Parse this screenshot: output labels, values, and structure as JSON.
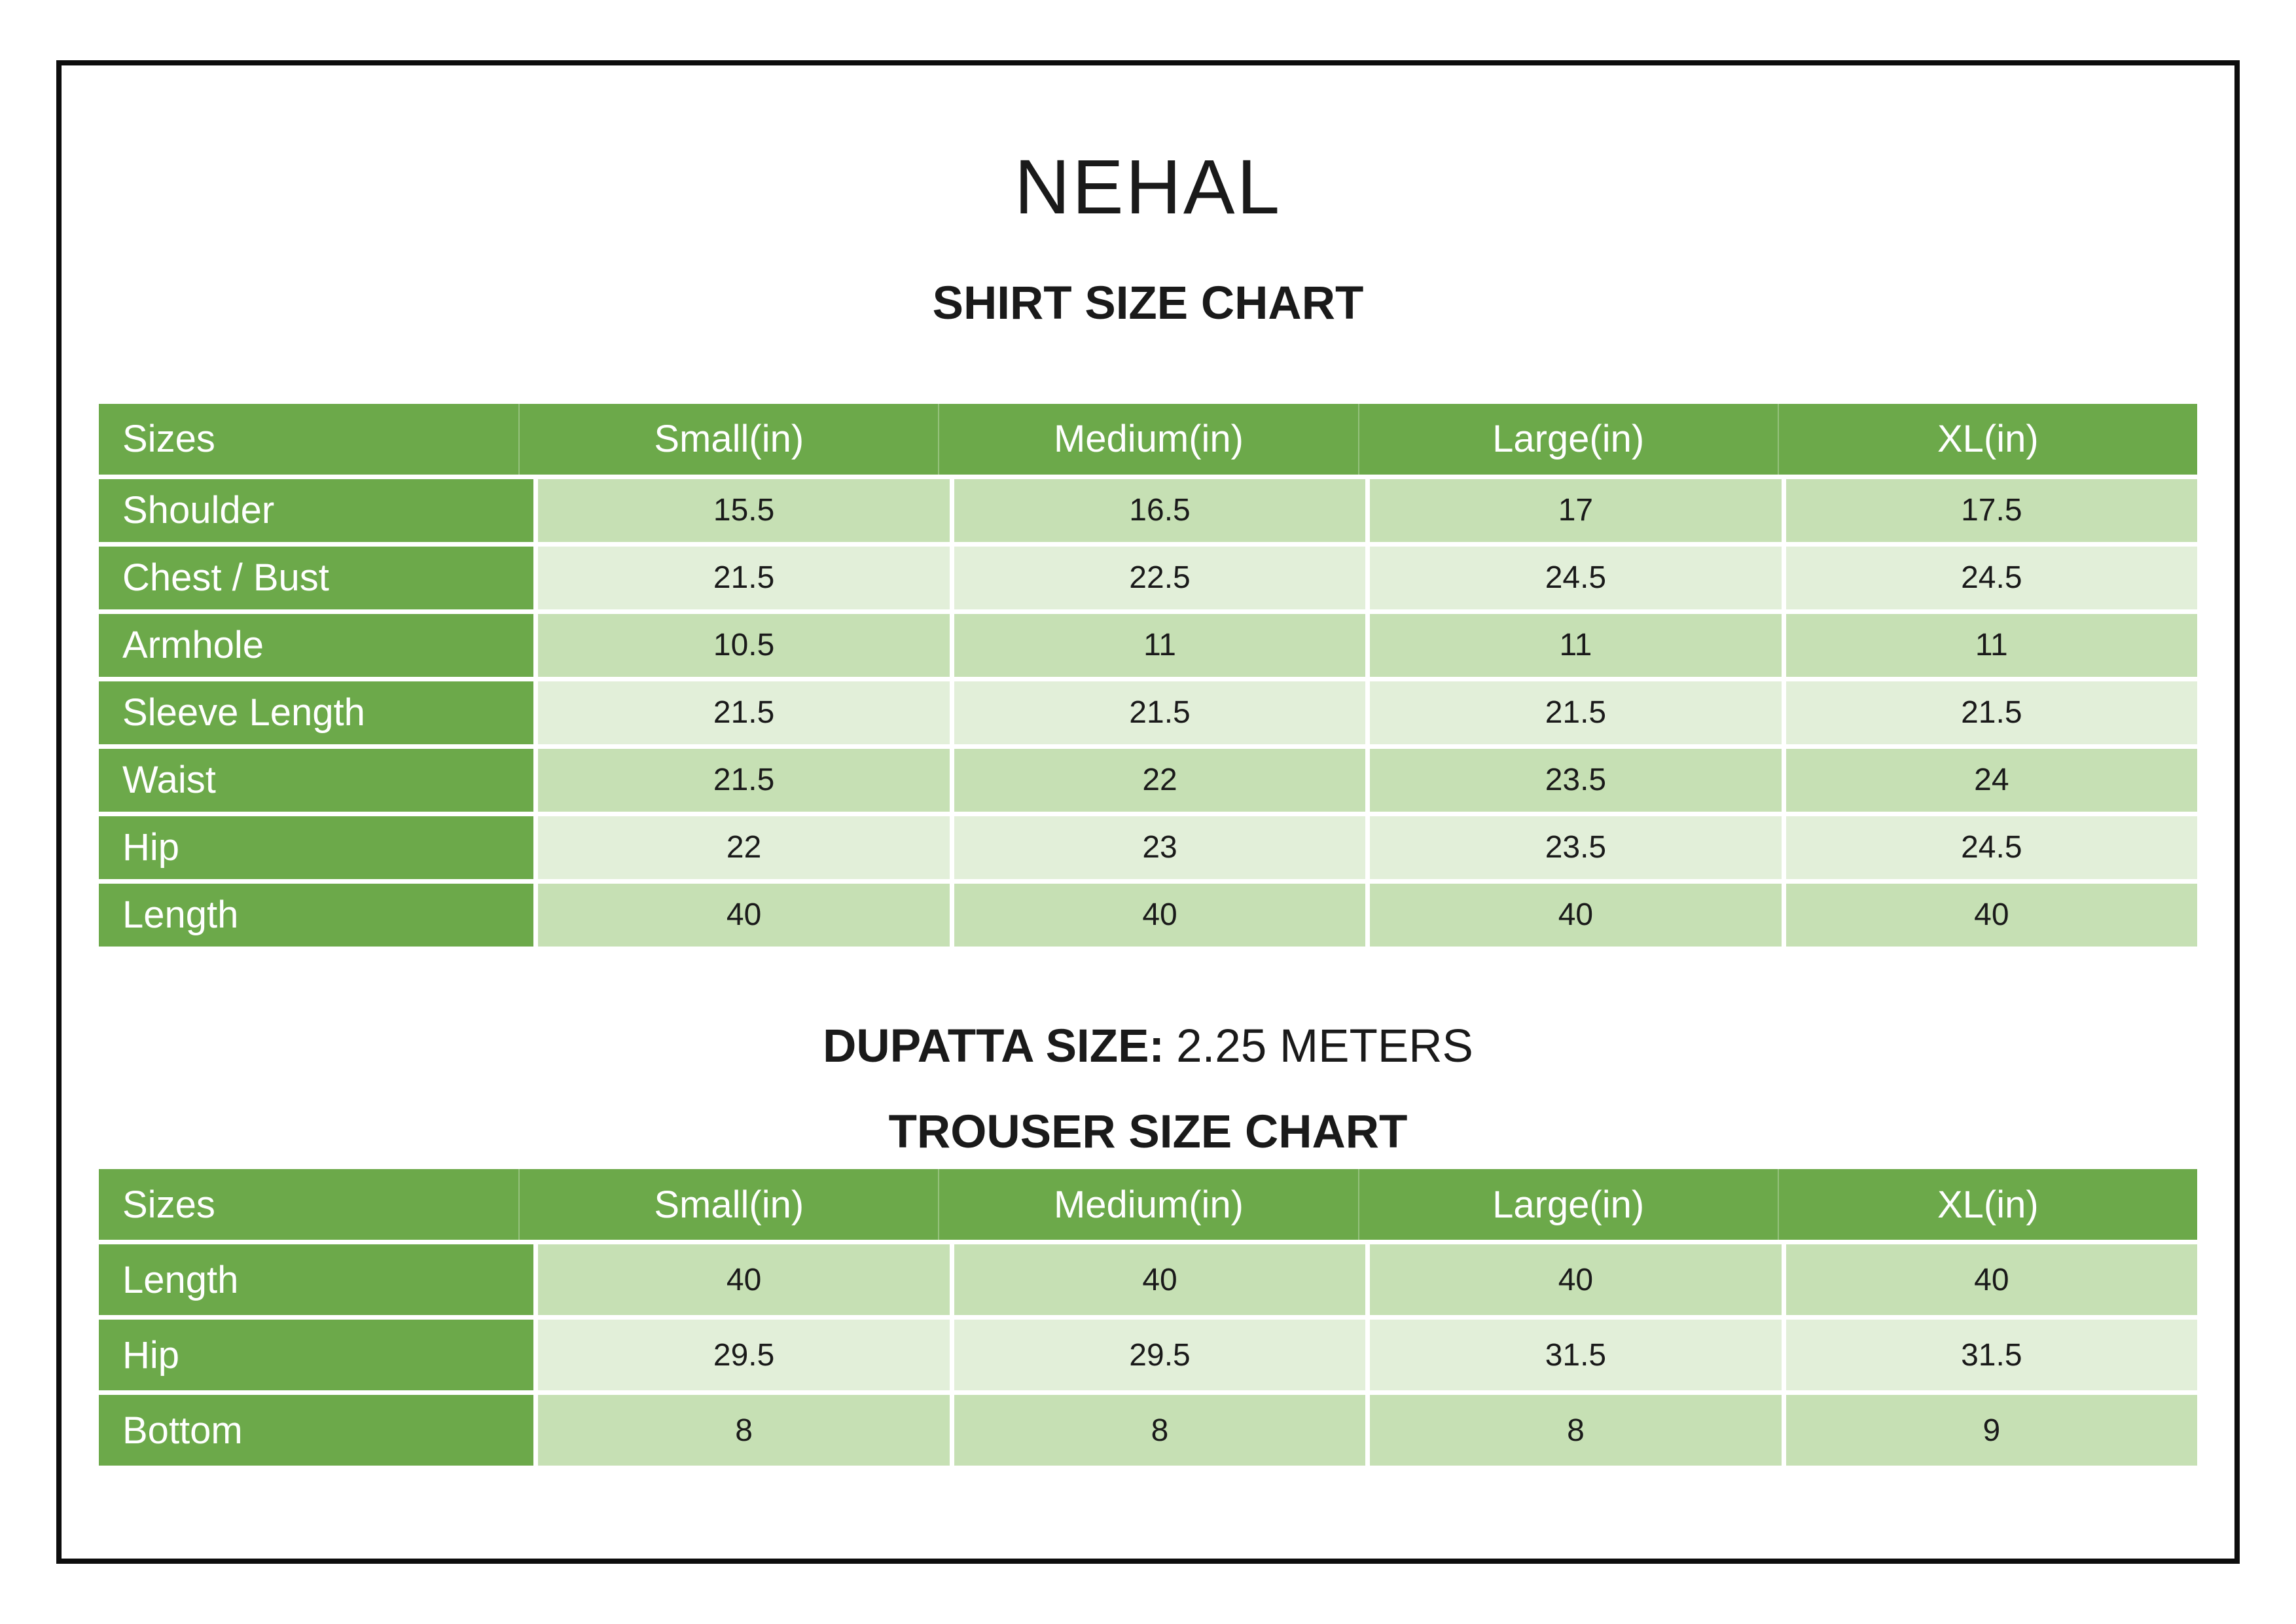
{
  "page": {
    "brand": "NEHAL",
    "shirt_chart_title": "SHIRT SIZE CHART",
    "dupatta_label": "DUPATTA SIZE:",
    "dupatta_value": "2.25 METERS",
    "trouser_chart_title": "TROUSER SIZE CHART"
  },
  "shirt_table": {
    "columns": [
      "Sizes",
      "Small(in)",
      "Medium(in)",
      "Large(in)",
      "XL(in)"
    ],
    "rows": [
      {
        "label": "Shoulder",
        "values": [
          "15.5",
          "16.5",
          "17",
          "17.5"
        ]
      },
      {
        "label": "Chest / Bust",
        "values": [
          "21.5",
          "22.5",
          "24.5",
          "24.5"
        ]
      },
      {
        "label": "Armhole",
        "values": [
          "10.5",
          "11",
          "11",
          "11"
        ]
      },
      {
        "label": "Sleeve Length",
        "values": [
          "21.5",
          "21.5",
          "21.5",
          "21.5"
        ]
      },
      {
        "label": "Waist",
        "values": [
          "21.5",
          "22",
          "23.5",
          "24"
        ]
      },
      {
        "label": "Hip",
        "values": [
          "22",
          "23",
          "23.5",
          "24.5"
        ]
      },
      {
        "label": "Length",
        "values": [
          "40",
          "40",
          "40",
          "40"
        ]
      }
    ]
  },
  "trouser_table": {
    "columns": [
      "Sizes",
      "Small(in)",
      "Medium(in)",
      "Large(in)",
      "XL(in)"
    ],
    "rows": [
      {
        "label": "Length",
        "values": [
          "40",
          "40",
          "40",
          "40"
        ]
      },
      {
        "label": "Hip",
        "values": [
          "29.5",
          "29.5",
          "31.5",
          "31.5"
        ]
      },
      {
        "label": "Bottom",
        "values": [
          "8",
          "8",
          "8",
          "9"
        ]
      }
    ]
  },
  "colors": {
    "header_green": "#6CA94A",
    "band_dark": "#C6E0B4",
    "band_light": "#E2EFD9",
    "frame_border": "#0D0D0D",
    "heading_text": "#1A1A1A",
    "value_text": "#1A1A1A",
    "header_text": "#FFFFFF"
  }
}
